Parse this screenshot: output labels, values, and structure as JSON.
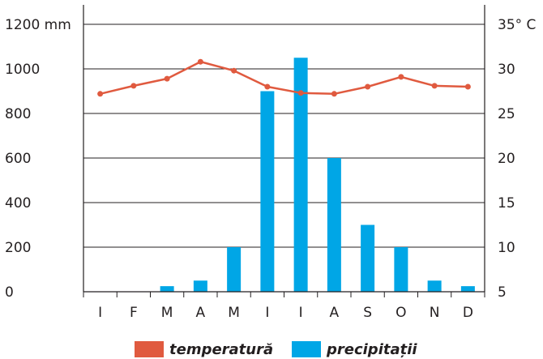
{
  "chart_data": {
    "type": "bar",
    "categories": [
      "I",
      "F",
      "M",
      "A",
      "M",
      "I",
      "I",
      "A",
      "S",
      "O",
      "N",
      "D"
    ],
    "series": [
      {
        "name": "precipitații",
        "type": "bar",
        "axis": "left",
        "color": "#00a6e6",
        "values": [
          0,
          0,
          25,
          50,
          200,
          900,
          1050,
          600,
          300,
          200,
          50,
          25
        ]
      },
      {
        "name": "temperatură",
        "type": "line",
        "axis": "right",
        "color": "#e05a3f",
        "values": [
          27.2,
          28.1,
          28.9,
          30.8,
          29.8,
          28.0,
          27.3,
          27.2,
          28.0,
          29.1,
          28.1,
          28.0
        ]
      }
    ],
    "y_left": {
      "ticks": [
        0,
        200,
        400,
        600,
        800,
        1000,
        1200
      ],
      "tick_labels": [
        "0",
        "200",
        "400",
        "600",
        "800",
        "1000",
        "1200 mm"
      ],
      "ylim": [
        0,
        1200
      ]
    },
    "y_right": {
      "ticks": [
        5,
        10,
        15,
        20,
        25,
        30,
        35
      ],
      "tick_labels": [
        "5",
        "10",
        "15",
        "20",
        "25",
        "30",
        "35° C"
      ],
      "ylim": [
        5,
        35
      ]
    },
    "grid": "horizontal",
    "legend": {
      "position": "bottom",
      "items": [
        {
          "label": "temperatură",
          "color": "#e05a3f"
        },
        {
          "label": "precipitații",
          "color": "#00a6e6"
        }
      ]
    }
  }
}
